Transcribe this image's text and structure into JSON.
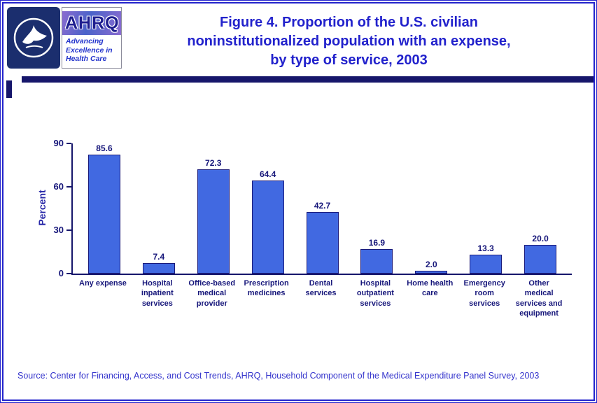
{
  "header": {
    "title_lines": [
      "Figure 4. Proportion of the U.S. civilian",
      "noninstitutionalized population with an expense,",
      "by type of service, 2003"
    ],
    "logo": {
      "ahrq": "AHRQ",
      "tagline": "Advancing\nExcellence in\nHealth Care"
    }
  },
  "chart_data": {
    "type": "bar",
    "title": "Figure 4. Proportion of the U.S. civilian noninstitutionalized population with an expense, by type of service, 2003",
    "categories": [
      "Any expense",
      "Hospital\ninpatient\nservices",
      "Office-based\nmedical\nprovider",
      "Prescription\nmedicines",
      "Dental\nservices",
      "Hospital\noutpatient\nservices",
      "Home health\ncare",
      "Emergency\nroom\nservices",
      "Other\nmedical\nservices and\nequipment"
    ],
    "values": [
      85.6,
      7.4,
      72.3,
      64.4,
      42.7,
      16.9,
      2.0,
      13.3,
      20.0
    ],
    "xlabel": "",
    "ylabel": "Percent",
    "ylim": [
      0,
      90
    ],
    "yticks": [
      0,
      30,
      60,
      90
    ],
    "grid": false,
    "legend": false,
    "bar_color": "#4169E1"
  },
  "source": "Source: Center for Financing, Access, and Cost Trends, AHRQ, Household Component of the Medical Expenditure Panel Survey, 2003",
  "colors": {
    "title_blue": "#2222CC",
    "bar_blue": "#4169E1",
    "navy": "#16166B",
    "label_navy": "#16167A",
    "source_blue": "#3333CC"
  }
}
